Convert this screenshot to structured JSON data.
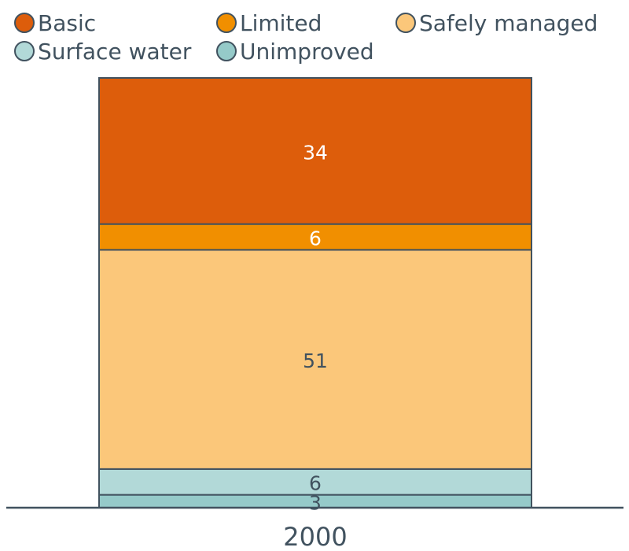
{
  "chart_data": {
    "type": "bar",
    "stacked": true,
    "categories": [
      "2000"
    ],
    "series": [
      {
        "name": "Unimproved",
        "values": [
          3
        ],
        "color": "#95cac9",
        "label_color": "#41525f"
      },
      {
        "name": "Surface water",
        "values": [
          6
        ],
        "color": "#b2d9d8",
        "label_color": "#41525f"
      },
      {
        "name": "Safely managed",
        "values": [
          51
        ],
        "color": "#fbc77a",
        "label_color": "#41525f"
      },
      {
        "name": "Limited",
        "values": [
          6
        ],
        "color": "#f18f00",
        "label_color": "#ffffff"
      },
      {
        "name": "Basic",
        "values": [
          34
        ],
        "color": "#dd5d0b",
        "label_color": "#ffffff"
      }
    ],
    "legend": {
      "position": "top",
      "order": [
        "Basic",
        "Limited",
        "Safely managed",
        "Surface water",
        "Unimproved"
      ]
    },
    "ylim": [
      0,
      100
    ],
    "grid": false,
    "title": "",
    "xlabel": "",
    "ylabel": ""
  }
}
